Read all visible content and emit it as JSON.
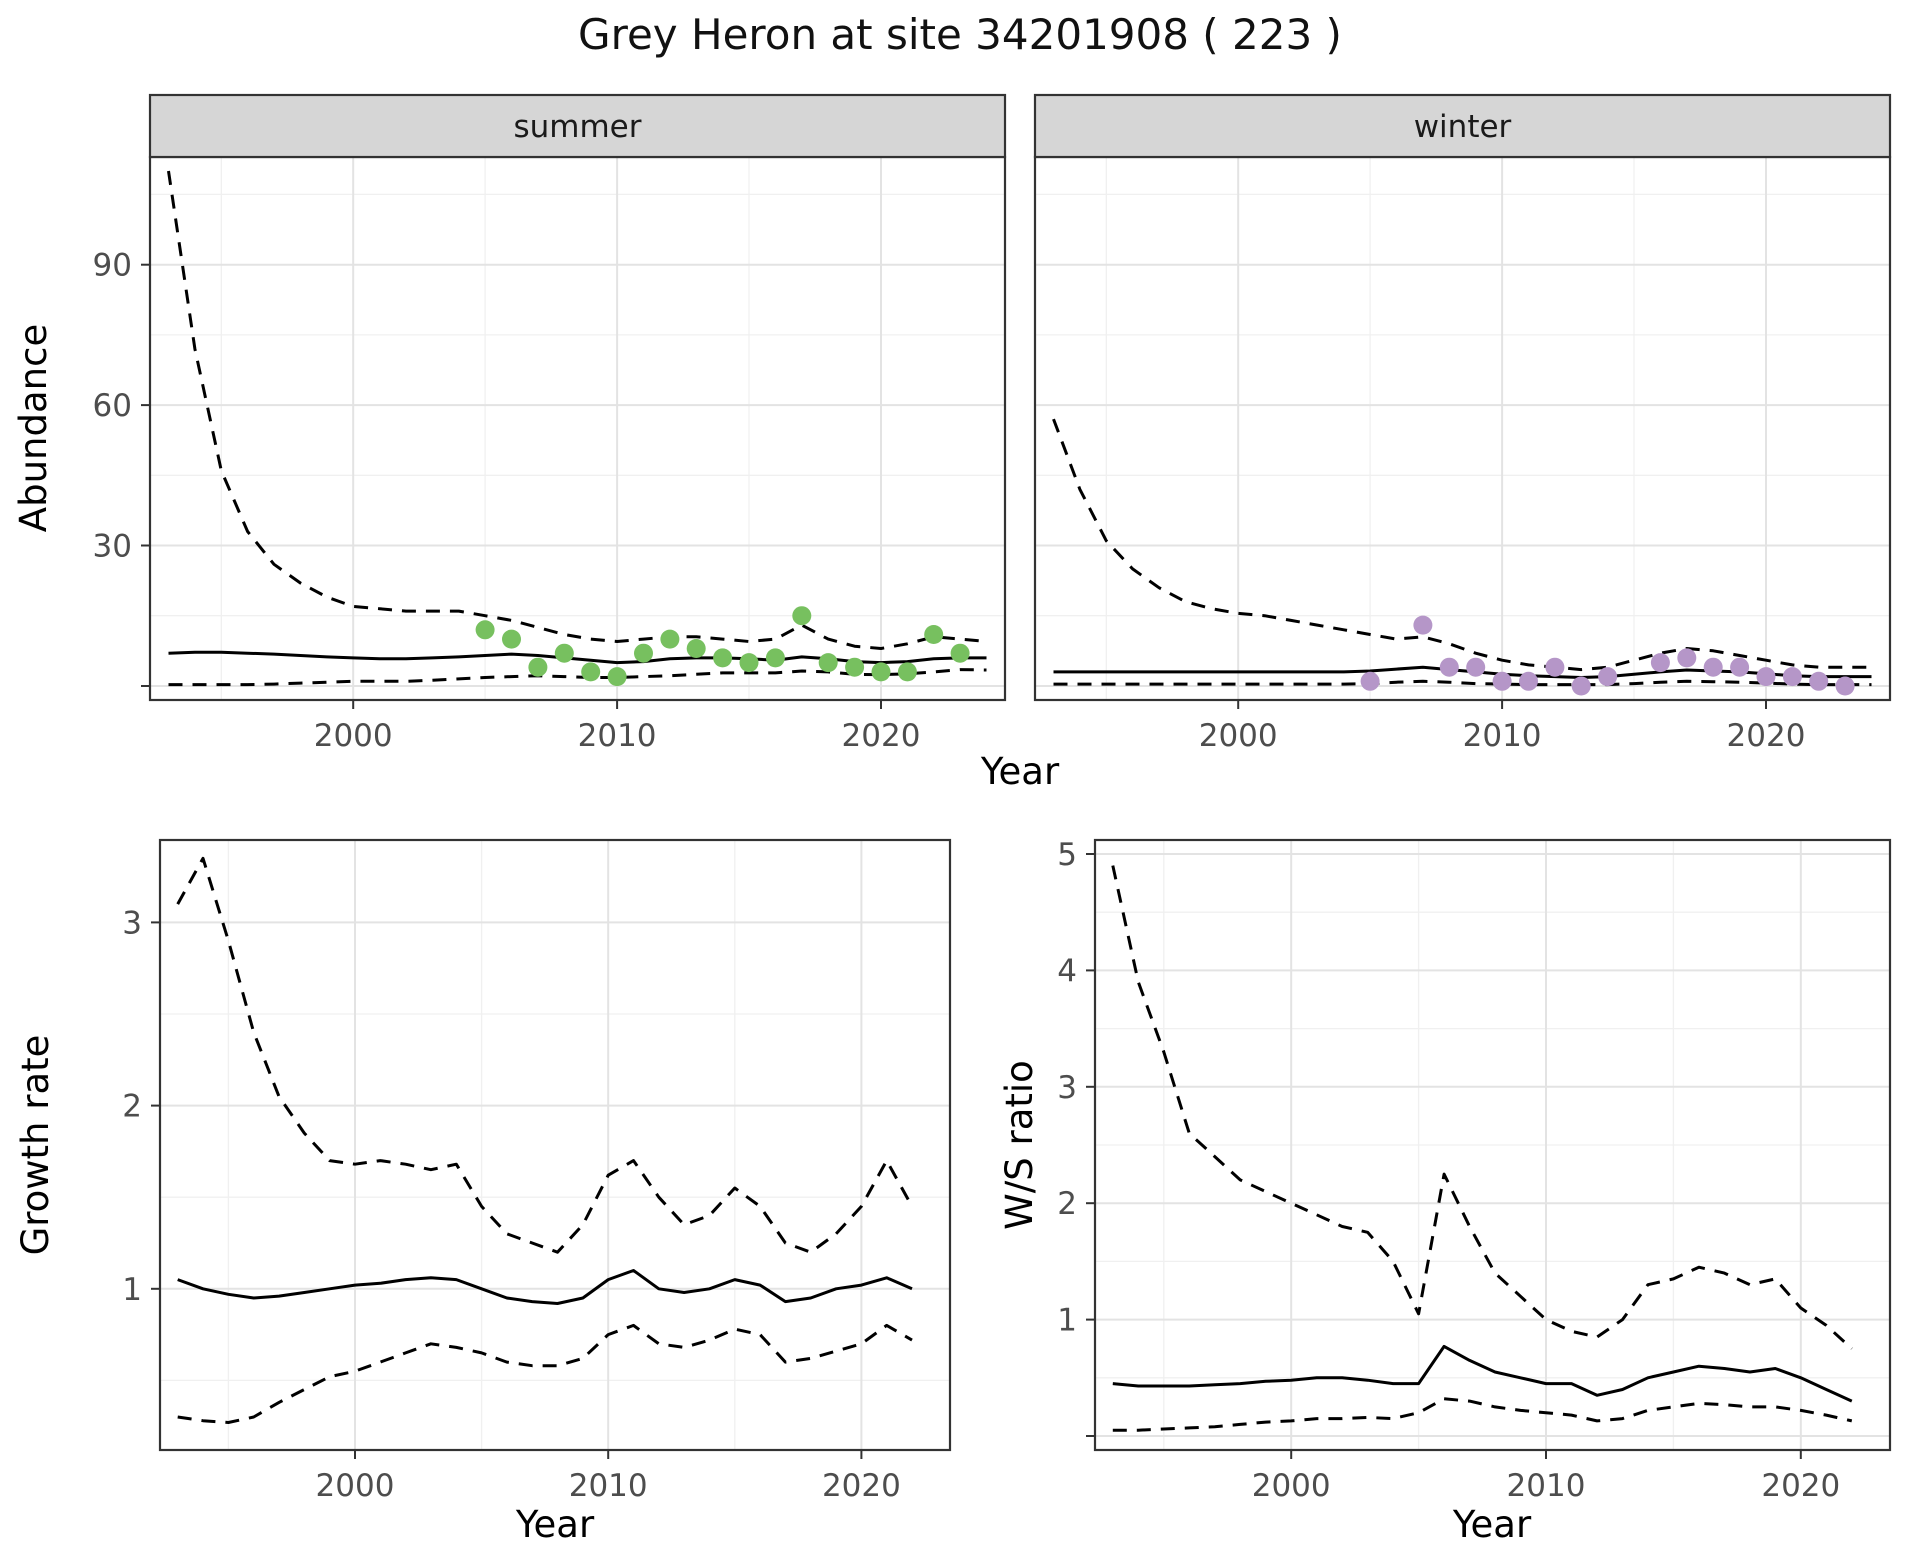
{
  "title": "Grey Heron at site 34201908 ( 223 )",
  "colors": {
    "summer_point": "#77c05f",
    "winter_point": "#b596c8",
    "line": "#000000",
    "grid_major": "#e3e3e3",
    "grid_minor": "#f0f0f0",
    "strip_bg": "#d6d6d6",
    "panel_border": "#333333",
    "tick_text": "#4d4d4d",
    "axis_title": "#000000"
  },
  "chart_data": [
    {
      "id": "abundance_summer",
      "type": "line",
      "facet_label": "summer",
      "ylabel": "Abundance",
      "xlabel": "Year",
      "xlim": [
        1992.3,
        2024.7
      ],
      "ylim": [
        -3,
        113
      ],
      "xticks": [
        2000,
        2010,
        2020
      ],
      "yticks": [
        0,
        30,
        60,
        90
      ],
      "x": [
        1993,
        1994,
        1995,
        1996,
        1997,
        1998,
        1999,
        2000,
        2001,
        2002,
        2003,
        2004,
        2005,
        2006,
        2007,
        2008,
        2009,
        2010,
        2011,
        2012,
        2013,
        2014,
        2015,
        2016,
        2017,
        2018,
        2019,
        2020,
        2021,
        2022,
        2023,
        2024
      ],
      "series": [
        {
          "name": "upper_ci",
          "style": "dashed",
          "values": [
            110,
            72,
            46,
            33,
            26,
            22,
            19,
            17,
            16.5,
            16,
            16,
            16,
            15,
            14,
            12.5,
            11,
            10,
            9.5,
            10,
            10.5,
            10.5,
            10,
            9.5,
            10,
            13,
            10,
            8.5,
            8,
            9,
            10.5,
            10,
            9.5
          ]
        },
        {
          "name": "median",
          "style": "solid",
          "values": [
            7,
            7.2,
            7.2,
            7,
            6.8,
            6.5,
            6.2,
            6,
            5.8,
            5.8,
            6,
            6.2,
            6.5,
            6.8,
            6.5,
            6,
            5.5,
            5,
            5.2,
            5.8,
            6,
            6,
            5.8,
            5.5,
            6.2,
            5.8,
            5.2,
            5,
            5.2,
            5.8,
            6,
            6
          ]
        },
        {
          "name": "lower_ci",
          "style": "dashed",
          "values": [
            0.3,
            0.3,
            0.3,
            0.3,
            0.4,
            0.6,
            0.8,
            1,
            1,
            1,
            1.2,
            1.5,
            1.8,
            2,
            2.2,
            2,
            1.8,
            1.8,
            2,
            2.2,
            2.5,
            2.8,
            2.8,
            2.8,
            3.2,
            3,
            2.5,
            2.4,
            2.6,
            3,
            3.5,
            3.4
          ]
        }
      ],
      "points": {
        "name": "observed_counts",
        "color_key": "summer_point",
        "x": [
          2005,
          2006,
          2007,
          2008,
          2009,
          2010,
          2011,
          2012,
          2013,
          2014,
          2015,
          2016,
          2017,
          2018,
          2019,
          2020,
          2021,
          2022,
          2023
        ],
        "y": [
          12,
          10,
          4,
          7,
          3,
          2,
          7,
          10,
          8,
          6,
          5,
          6,
          15,
          5,
          4,
          3,
          3,
          11,
          7
        ]
      }
    },
    {
      "id": "abundance_winter",
      "type": "line",
      "facet_label": "winter",
      "ylabel": "Abundance",
      "xlabel": "Year",
      "xlim": [
        1992.3,
        2024.7
      ],
      "ylim": [
        -3,
        113
      ],
      "xticks": [
        2000,
        2010,
        2020
      ],
      "yticks": [
        0,
        30,
        60,
        90
      ],
      "x": [
        1993,
        1994,
        1995,
        1996,
        1997,
        1998,
        1999,
        2000,
        2001,
        2002,
        2003,
        2004,
        2005,
        2006,
        2007,
        2008,
        2009,
        2010,
        2011,
        2012,
        2013,
        2014,
        2015,
        2016,
        2017,
        2018,
        2019,
        2020,
        2021,
        2022,
        2023,
        2024
      ],
      "series": [
        {
          "name": "upper_ci",
          "style": "dashed",
          "values": [
            57,
            42,
            31,
            25,
            21,
            18,
            16.5,
            15.5,
            15,
            14,
            13,
            12,
            11,
            10,
            10.5,
            9,
            7,
            5.5,
            4.5,
            4,
            3.5,
            4,
            5.5,
            7,
            8,
            7.5,
            6.5,
            5.5,
            4.5,
            4,
            4,
            4
          ]
        },
        {
          "name": "median",
          "style": "solid",
          "values": [
            3,
            3,
            3,
            3,
            3,
            3,
            3,
            3,
            3,
            3,
            3,
            3,
            3.2,
            3.6,
            4,
            3.5,
            3,
            2.5,
            2.2,
            2,
            1.8,
            2,
            2.5,
            3,
            3.4,
            3.2,
            3,
            2.6,
            2.2,
            2,
            2,
            2
          ]
        },
        {
          "name": "lower_ci",
          "style": "dashed",
          "values": [
            0.4,
            0.4,
            0.4,
            0.4,
            0.4,
            0.4,
            0.4,
            0.4,
            0.4,
            0.4,
            0.4,
            0.4,
            0.5,
            0.8,
            1,
            0.8,
            0.5,
            0.4,
            0.3,
            0.3,
            0.3,
            0.3,
            0.5,
            0.8,
            1,
            0.9,
            0.8,
            0.6,
            0.4,
            0.3,
            0.3,
            0.3
          ]
        }
      ],
      "points": {
        "name": "observed_counts",
        "color_key": "winter_point",
        "x": [
          2005,
          2007,
          2008,
          2009,
          2010,
          2011,
          2012,
          2013,
          2014,
          2016,
          2017,
          2018,
          2019,
          2020,
          2021,
          2022,
          2023
        ],
        "y": [
          1,
          13,
          4,
          4,
          1,
          1,
          4,
          0,
          2,
          5,
          6,
          4,
          4,
          2,
          2,
          1,
          0
        ]
      }
    },
    {
      "id": "growth_rate",
      "type": "line",
      "facet_label": "",
      "ylabel": "Growth rate",
      "xlabel": "Year",
      "xlim": [
        1992.3,
        2023.5
      ],
      "ylim": [
        0.12,
        3.45
      ],
      "xticks": [
        2000,
        2010,
        2020
      ],
      "yticks": [
        1,
        2,
        3
      ],
      "x": [
        1993,
        1994,
        1995,
        1996,
        1997,
        1998,
        1999,
        2000,
        2001,
        2002,
        2003,
        2004,
        2005,
        2006,
        2007,
        2008,
        2009,
        2010,
        2011,
        2012,
        2013,
        2014,
        2015,
        2016,
        2017,
        2018,
        2019,
        2020,
        2021,
        2022
      ],
      "series": [
        {
          "name": "upper_ci",
          "style": "dashed",
          "values": [
            3.1,
            3.35,
            2.9,
            2.4,
            2.05,
            1.85,
            1.7,
            1.68,
            1.7,
            1.68,
            1.65,
            1.68,
            1.45,
            1.3,
            1.25,
            1.2,
            1.35,
            1.62,
            1.7,
            1.5,
            1.35,
            1.4,
            1.55,
            1.45,
            1.25,
            1.2,
            1.3,
            1.45,
            1.7,
            1.45
          ]
        },
        {
          "name": "median",
          "style": "solid",
          "values": [
            1.05,
            1.0,
            0.97,
            0.95,
            0.96,
            0.98,
            1.0,
            1.02,
            1.03,
            1.05,
            1.06,
            1.05,
            1.0,
            0.95,
            0.93,
            0.92,
            0.95,
            1.05,
            1.1,
            1.0,
            0.98,
            1.0,
            1.05,
            1.02,
            0.93,
            0.95,
            1.0,
            1.02,
            1.06,
            1.0
          ]
        },
        {
          "name": "lower_ci",
          "style": "dashed",
          "values": [
            0.3,
            0.28,
            0.27,
            0.3,
            0.38,
            0.45,
            0.52,
            0.55,
            0.6,
            0.65,
            0.7,
            0.68,
            0.65,
            0.6,
            0.58,
            0.58,
            0.62,
            0.75,
            0.8,
            0.7,
            0.68,
            0.72,
            0.78,
            0.75,
            0.6,
            0.62,
            0.66,
            0.7,
            0.8,
            0.72
          ]
        }
      ],
      "points": null
    },
    {
      "id": "ws_ratio",
      "type": "line",
      "facet_label": "",
      "ylabel": "W/S ratio",
      "xlabel": "Year",
      "xlim": [
        1992.3,
        2023.5
      ],
      "ylim": [
        -0.12,
        5.12
      ],
      "xticks": [
        2000,
        2010,
        2020
      ],
      "yticks": [
        0,
        1,
        2,
        3,
        4,
        5
      ],
      "x": [
        1993,
        1994,
        1995,
        1996,
        1997,
        1998,
        1999,
        2000,
        2001,
        2002,
        2003,
        2004,
        2005,
        2006,
        2007,
        2008,
        2009,
        2010,
        2011,
        2012,
        2013,
        2014,
        2015,
        2016,
        2017,
        2018,
        2019,
        2020,
        2021,
        2022
      ],
      "series": [
        {
          "name": "upper_ci",
          "style": "dashed",
          "values": [
            4.9,
            3.9,
            3.3,
            2.6,
            2.4,
            2.2,
            2.1,
            2.0,
            1.9,
            1.8,
            1.75,
            1.5,
            1.05,
            2.25,
            1.8,
            1.4,
            1.2,
            1.0,
            0.9,
            0.85,
            1.0,
            1.3,
            1.35,
            1.45,
            1.4,
            1.3,
            1.35,
            1.1,
            0.95,
            0.75
          ]
        },
        {
          "name": "median",
          "style": "solid",
          "values": [
            0.45,
            0.43,
            0.43,
            0.43,
            0.44,
            0.45,
            0.47,
            0.48,
            0.5,
            0.5,
            0.48,
            0.45,
            0.45,
            0.77,
            0.65,
            0.55,
            0.5,
            0.45,
            0.45,
            0.35,
            0.4,
            0.5,
            0.55,
            0.6,
            0.58,
            0.55,
            0.58,
            0.5,
            0.4,
            0.3
          ]
        },
        {
          "name": "lower_ci",
          "style": "dashed",
          "values": [
            0.05,
            0.05,
            0.06,
            0.07,
            0.08,
            0.1,
            0.12,
            0.13,
            0.15,
            0.15,
            0.16,
            0.15,
            0.2,
            0.32,
            0.3,
            0.25,
            0.22,
            0.2,
            0.18,
            0.13,
            0.15,
            0.22,
            0.25,
            0.28,
            0.27,
            0.25,
            0.25,
            0.22,
            0.18,
            0.13
          ]
        }
      ],
      "points": null
    }
  ]
}
